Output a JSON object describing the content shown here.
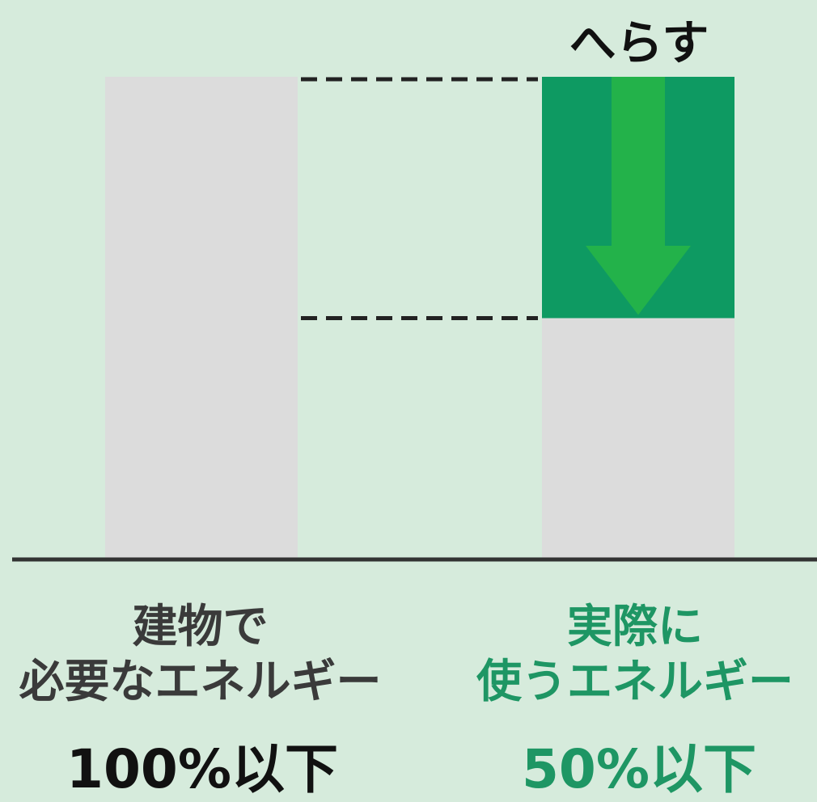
{
  "colors": {
    "background": "#d6ebdc",
    "bar_gray": "#dcdcdc",
    "reduction_green": "#0e9a62",
    "arrow_green": "#23b24a",
    "baseline": "#333333",
    "accent_text": "#1e9664"
  },
  "chart_data": {
    "type": "bar",
    "categories": [
      "建物で\n必要なエネルギー",
      "実際に\n使うエネルギー"
    ],
    "values": [
      100,
      50
    ],
    "reduction": 50,
    "value_labels": [
      "100%以下",
      "50%以下"
    ],
    "annotation": "へらす",
    "ylim": [
      0,
      100
    ],
    "grid": false,
    "legend": "none"
  },
  "labels": {
    "left_line1": "建物で",
    "left_line2": "必要なエネルギー",
    "right_line1": "実際に",
    "right_line2": "使うエネルギー",
    "left_value": "100%以下",
    "right_value": "50%以下",
    "annotation": "へらす"
  }
}
